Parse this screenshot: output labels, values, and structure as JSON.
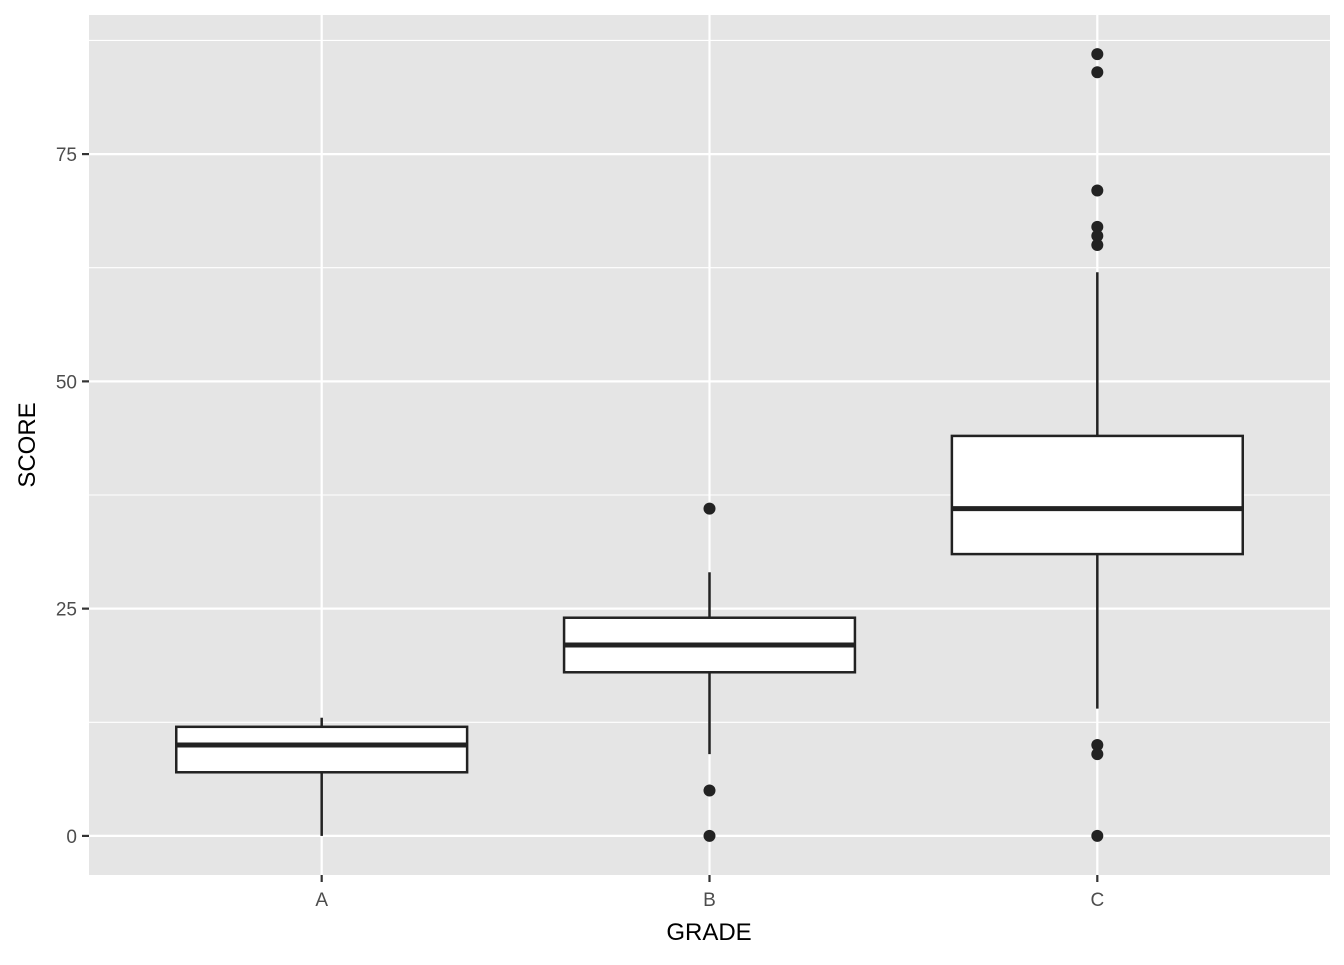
{
  "chart_data": {
    "type": "boxplot",
    "title": "",
    "xlabel": "GRADE",
    "ylabel": "SCORE",
    "categories": [
      "A",
      "B",
      "C"
    ],
    "ylim": [
      -4.3,
      90.3
    ],
    "yticks": [
      0,
      25,
      50,
      75
    ],
    "ytick_labels": [
      "0",
      "25",
      "50",
      "75"
    ],
    "grid": true,
    "panel_background": "#e5e5e5",
    "box_fill": "#ffffff",
    "line_color": "#222222",
    "boxes": [
      {
        "category": "A",
        "whisker_low": 0,
        "q1": 7,
        "median": 10,
        "q3": 12,
        "whisker_high": 13,
        "outliers": []
      },
      {
        "category": "B",
        "whisker_low": 9,
        "q1": 18,
        "median": 21,
        "q3": 24,
        "whisker_high": 29,
        "outliers": [
          36,
          5,
          0
        ]
      },
      {
        "category": "C",
        "whisker_low": 14,
        "q1": 31,
        "median": 36,
        "q3": 44,
        "whisker_high": 62,
        "outliers": [
          86,
          84,
          71,
          67,
          66,
          65,
          10,
          9,
          0
        ]
      }
    ]
  }
}
